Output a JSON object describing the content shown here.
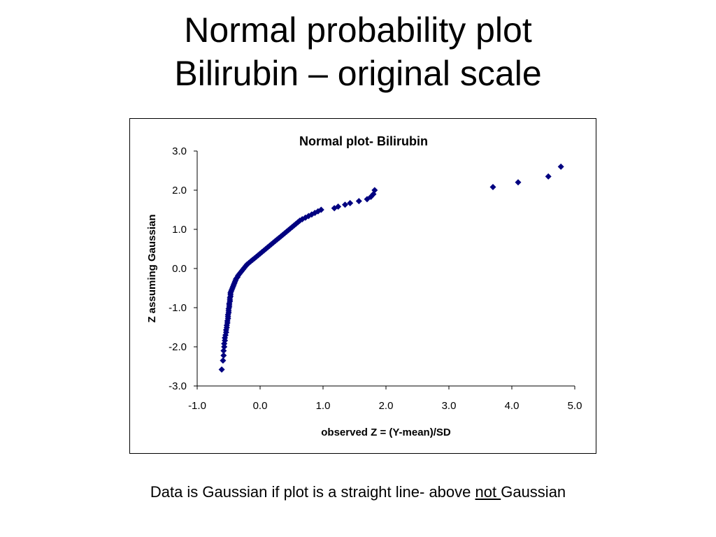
{
  "slide": {
    "title_line1": "Normal probability plot",
    "title_line2": "Bilirubin – original scale",
    "caption_before": "Data is Gaussian if plot is a straight line- above",
    "caption_emph": "not ",
    "caption_after": "Gaussian"
  },
  "chart_data": {
    "type": "scatter",
    "title": "Normal plot- Bilirubin",
    "xlabel": "observed Z = (Y-mean)/SD",
    "ylabel": "Z assuming Gaussian",
    "xlim": [
      -1.0,
      5.0
    ],
    "ylim": [
      -3.0,
      3.0
    ],
    "xticks": [
      "-1.0",
      "0.0",
      "1.0",
      "2.0",
      "3.0",
      "4.0",
      "5.0"
    ],
    "yticks": [
      "3.0",
      "2.0",
      "1.0",
      "0.0",
      "-1.0",
      "-2.0",
      "-3.0"
    ],
    "grid": false,
    "legend": "none",
    "marker": "diamond",
    "marker_color": "#000080",
    "series": [
      {
        "points": [
          [
            -0.61,
            -2.58
          ],
          [
            -0.59,
            -2.35
          ],
          [
            -0.58,
            -2.22
          ],
          [
            -0.58,
            -2.1
          ],
          [
            -0.57,
            -2.0
          ],
          [
            -0.57,
            -1.92
          ],
          [
            -0.56,
            -1.84
          ],
          [
            -0.56,
            -1.77
          ],
          [
            -0.55,
            -1.7
          ],
          [
            -0.54,
            -1.63
          ],
          [
            -0.54,
            -1.57
          ],
          [
            -0.53,
            -1.51
          ],
          [
            -0.53,
            -1.45
          ],
          [
            -0.52,
            -1.39
          ],
          [
            -0.52,
            -1.34
          ],
          [
            -0.51,
            -1.28
          ],
          [
            -0.51,
            -1.23
          ],
          [
            -0.51,
            -1.18
          ],
          [
            -0.5,
            -1.13
          ],
          [
            -0.5,
            -1.08
          ],
          [
            -0.5,
            -1.03
          ],
          [
            -0.49,
            -0.98
          ],
          [
            -0.49,
            -0.93
          ],
          [
            -0.49,
            -0.89
          ],
          [
            -0.48,
            -0.84
          ],
          [
            -0.48,
            -0.8
          ],
          [
            -0.48,
            -0.75
          ],
          [
            -0.47,
            -0.71
          ],
          [
            -0.47,
            -0.66
          ],
          [
            -0.47,
            -0.62
          ],
          [
            -0.46,
            -0.58
          ],
          [
            -0.45,
            -0.54
          ],
          [
            -0.44,
            -0.5
          ],
          [
            -0.43,
            -0.46
          ],
          [
            -0.42,
            -0.42
          ],
          [
            -0.41,
            -0.38
          ],
          [
            -0.4,
            -0.34
          ],
          [
            -0.39,
            -0.3
          ],
          [
            -0.38,
            -0.26
          ],
          [
            -0.36,
            -0.22
          ],
          [
            -0.35,
            -0.18
          ],
          [
            -0.33,
            -0.14
          ],
          [
            -0.31,
            -0.1
          ],
          [
            -0.29,
            -0.06
          ],
          [
            -0.27,
            -0.02
          ],
          [
            -0.25,
            0.02
          ],
          [
            -0.23,
            0.06
          ],
          [
            -0.21,
            0.1
          ],
          [
            -0.18,
            0.14
          ],
          [
            -0.15,
            0.18
          ],
          [
            -0.12,
            0.22
          ],
          [
            -0.09,
            0.26
          ],
          [
            -0.06,
            0.3
          ],
          [
            -0.03,
            0.34
          ],
          [
            0.0,
            0.38
          ],
          [
            0.03,
            0.42
          ],
          [
            0.06,
            0.46
          ],
          [
            0.09,
            0.5
          ],
          [
            0.12,
            0.54
          ],
          [
            0.15,
            0.58
          ],
          [
            0.18,
            0.62
          ],
          [
            0.21,
            0.66
          ],
          [
            0.24,
            0.7
          ],
          [
            0.27,
            0.74
          ],
          [
            0.3,
            0.78
          ],
          [
            0.33,
            0.82
          ],
          [
            0.36,
            0.86
          ],
          [
            0.39,
            0.9
          ],
          [
            0.42,
            0.94
          ],
          [
            0.45,
            0.98
          ],
          [
            0.48,
            1.02
          ],
          [
            0.51,
            1.06
          ],
          [
            0.54,
            1.1
          ],
          [
            0.57,
            1.14
          ],
          [
            0.6,
            1.18
          ],
          [
            0.63,
            1.22
          ],
          [
            0.67,
            1.26
          ],
          [
            0.72,
            1.3
          ],
          [
            0.77,
            1.34
          ],
          [
            0.82,
            1.38
          ],
          [
            0.87,
            1.42
          ],
          [
            0.92,
            1.46
          ],
          [
            0.97,
            1.5
          ],
          [
            1.18,
            1.54
          ],
          [
            1.24,
            1.58
          ],
          [
            1.35,
            1.63
          ],
          [
            1.43,
            1.67
          ],
          [
            1.57,
            1.72
          ],
          [
            1.7,
            1.77
          ],
          [
            1.76,
            1.83
          ],
          [
            1.8,
            1.9
          ],
          [
            1.82,
            2.0
          ],
          [
            3.7,
            2.08
          ],
          [
            4.1,
            2.2
          ],
          [
            4.58,
            2.35
          ],
          [
            4.78,
            2.6
          ]
        ]
      }
    ]
  }
}
